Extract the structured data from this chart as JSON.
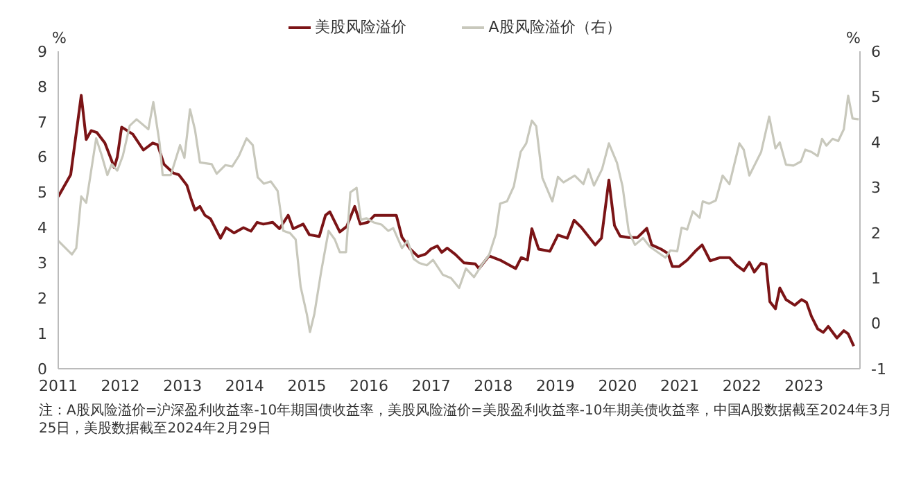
{
  "chart_data": {
    "type": "line",
    "ylabel": "%",
    "y2label": "%",
    "xlim": [
      2011,
      2023.9
    ],
    "xticks": [
      2011,
      2012,
      2013,
      2014,
      2015,
      2016,
      2017,
      2018,
      2019,
      2020,
      2021,
      2022,
      2023
    ],
    "ylim": [
      0,
      9
    ],
    "yticks": [
      0,
      1,
      2,
      3,
      4,
      5,
      6,
      7,
      8,
      9
    ],
    "y2lim": [
      -1,
      6
    ],
    "y2ticks": [
      -1,
      0,
      1,
      2,
      3,
      4,
      5,
      6
    ],
    "legend": "top",
    "grid": false,
    "marker": "none",
    "line_style": "solid",
    "annotations": [
      "注：A股风险溢价=沪深盈利收益率-10年期国债收益率，美股风险溢价=美股盈利收益率-10年期美债收益率，中国A股数据截至2024年3月25日，美股数据截至2024年2月29日"
    ],
    "series": [
      {
        "name": "美股风险溢价",
        "color": "#7b1416",
        "x": [
          2011.0,
          2011.2,
          2011.37,
          2011.45,
          2011.53,
          2011.62,
          2011.75,
          2011.86,
          2011.9,
          2011.95,
          2012.02,
          2012.2,
          2012.37,
          2012.52,
          2012.6,
          2012.7,
          2012.85,
          2012.94,
          2013.07,
          2013.14,
          2013.2,
          2013.28,
          2013.36,
          2013.45,
          2013.61,
          2013.7,
          2013.83,
          2013.98,
          2014.1,
          2014.2,
          2014.3,
          2014.45,
          2014.56,
          2014.7,
          2014.78,
          2014.94,
          2015.04,
          2015.2,
          2015.3,
          2015.37,
          2015.53,
          2015.64,
          2015.77,
          2015.86,
          2015.98,
          2016.09,
          2016.44,
          2016.53,
          2016.66,
          2016.79,
          2016.91,
          2017.0,
          2017.1,
          2017.17,
          2017.26,
          2017.39,
          2017.53,
          2017.71,
          2017.77,
          2017.93,
          2018.11,
          2018.36,
          2018.45,
          2018.55,
          2018.62,
          2018.73,
          2018.91,
          2019.04,
          2019.19,
          2019.3,
          2019.42,
          2019.64,
          2019.74,
          2019.86,
          2019.95,
          2020.04,
          2020.18,
          2020.32,
          2020.47,
          2020.55,
          2020.7,
          2020.81,
          2020.88,
          2020.99,
          2021.12,
          2021.25,
          2021.36,
          2021.49,
          2021.65,
          2021.8,
          2021.91,
          2022.03,
          2022.12,
          2022.2,
          2022.31,
          2022.39,
          2022.45,
          2022.54,
          2022.61,
          2022.71,
          2022.85,
          2022.96,
          2023.04,
          2023.12,
          2023.22,
          2023.31,
          2023.39,
          2023.53,
          2023.64,
          2023.71,
          2023.8
        ],
        "values": [
          4.88,
          5.5,
          7.75,
          6.5,
          6.75,
          6.7,
          6.4,
          5.9,
          5.7,
          6.0,
          6.85,
          6.65,
          6.2,
          6.4,
          6.35,
          5.8,
          5.55,
          5.5,
          5.2,
          4.8,
          4.5,
          4.6,
          4.35,
          4.25,
          3.7,
          4.0,
          3.85,
          4.0,
          3.9,
          4.15,
          4.1,
          4.15,
          3.97,
          4.35,
          3.97,
          4.1,
          3.8,
          3.75,
          4.35,
          4.45,
          3.88,
          4.03,
          4.6,
          4.1,
          4.15,
          4.35,
          4.35,
          3.73,
          3.4,
          3.18,
          3.25,
          3.4,
          3.48,
          3.3,
          3.42,
          3.24,
          3.0,
          2.97,
          2.84,
          3.2,
          3.08,
          2.84,
          3.15,
          3.08,
          3.97,
          3.39,
          3.33,
          3.79,
          3.7,
          4.21,
          4.0,
          3.51,
          3.7,
          5.35,
          4.06,
          3.76,
          3.72,
          3.72,
          3.98,
          3.51,
          3.39,
          3.27,
          2.9,
          2.9,
          3.08,
          3.33,
          3.51,
          3.06,
          3.15,
          3.15,
          2.94,
          2.78,
          3.02,
          2.74,
          2.99,
          2.96,
          1.9,
          1.7,
          2.29,
          1.96,
          1.8,
          1.96,
          1.88,
          1.48,
          1.13,
          1.03,
          1.2,
          0.87,
          1.08,
          0.99,
          0.64
        ]
      },
      {
        "name": "A股风险溢价（右）",
        "color": "#c8c8bc",
        "axis": "y2",
        "x": [
          2011.0,
          2011.22,
          2011.29,
          2011.37,
          2011.45,
          2011.61,
          2011.7,
          2011.79,
          2011.86,
          2011.95,
          2012.04,
          2012.15,
          2012.26,
          2012.45,
          2012.53,
          2012.63,
          2012.68,
          2012.81,
          2012.96,
          2013.03,
          2013.12,
          2013.2,
          2013.28,
          2013.47,
          2013.55,
          2013.69,
          2013.8,
          2013.91,
          2014.03,
          2014.13,
          2014.21,
          2014.31,
          2014.42,
          2014.53,
          2014.62,
          2014.73,
          2014.82,
          2014.9,
          2015.0,
          2015.05,
          2015.12,
          2015.23,
          2015.35,
          2015.45,
          2015.53,
          2015.63,
          2015.7,
          2015.8,
          2015.87,
          2015.96,
          2016.07,
          2016.2,
          2016.31,
          2016.39,
          2016.53,
          2016.62,
          2016.72,
          2016.81,
          2016.93,
          2017.03,
          2017.19,
          2017.32,
          2017.45,
          2017.56,
          2017.69,
          2017.82,
          2017.93,
          2018.04,
          2018.11,
          2018.22,
          2018.33,
          2018.44,
          2018.53,
          2018.62,
          2018.69,
          2018.79,
          2018.95,
          2019.04,
          2019.13,
          2019.31,
          2019.45,
          2019.53,
          2019.62,
          2019.75,
          2019.86,
          2019.99,
          2020.08,
          2020.18,
          2020.28,
          2020.41,
          2020.52,
          2020.77,
          2020.85,
          2020.96,
          2021.03,
          2021.12,
          2021.21,
          2021.32,
          2021.37,
          2021.47,
          2021.58,
          2021.69,
          2021.8,
          2021.96,
          2022.03,
          2022.12,
          2022.31,
          2022.44,
          2022.54,
          2022.61,
          2022.71,
          2022.83,
          2022.95,
          2023.02,
          2023.12,
          2023.22,
          2023.29,
          2023.36,
          2023.46,
          2023.55,
          2023.64,
          2023.71,
          2023.78,
          2023.88
        ],
        "values": [
          1.82,
          1.52,
          1.66,
          2.8,
          2.66,
          4.08,
          3.7,
          3.27,
          3.51,
          3.37,
          3.7,
          4.36,
          4.5,
          4.28,
          4.88,
          3.98,
          3.27,
          3.27,
          3.93,
          3.65,
          4.72,
          4.27,
          3.55,
          3.51,
          3.3,
          3.49,
          3.46,
          3.7,
          4.08,
          3.93,
          3.22,
          3.08,
          3.13,
          2.92,
          2.04,
          1.99,
          1.85,
          0.81,
          0.2,
          -0.19,
          0.2,
          1.14,
          2.04,
          1.85,
          1.57,
          1.57,
          2.89,
          2.99,
          2.28,
          2.32,
          2.23,
          2.18,
          2.04,
          2.1,
          1.66,
          1.82,
          1.42,
          1.33,
          1.28,
          1.4,
          1.07,
          1.0,
          0.78,
          1.21,
          1.02,
          1.3,
          1.5,
          1.97,
          2.64,
          2.69,
          3.02,
          3.78,
          3.97,
          4.47,
          4.35,
          3.21,
          2.69,
          3.23,
          3.11,
          3.26,
          3.07,
          3.4,
          3.04,
          3.4,
          3.97,
          3.54,
          3.02,
          2.02,
          1.73,
          1.88,
          1.69,
          1.45,
          1.61,
          1.59,
          2.11,
          2.07,
          2.47,
          2.33,
          2.69,
          2.64,
          2.71,
          3.26,
          3.07,
          3.97,
          3.83,
          3.26,
          3.78,
          4.56,
          3.86,
          3.99,
          3.5,
          3.48,
          3.57,
          3.83,
          3.78,
          3.69,
          4.07,
          3.92,
          4.07,
          4.02,
          4.28,
          5.02,
          4.52,
          4.5
        ]
      }
    ]
  }
}
